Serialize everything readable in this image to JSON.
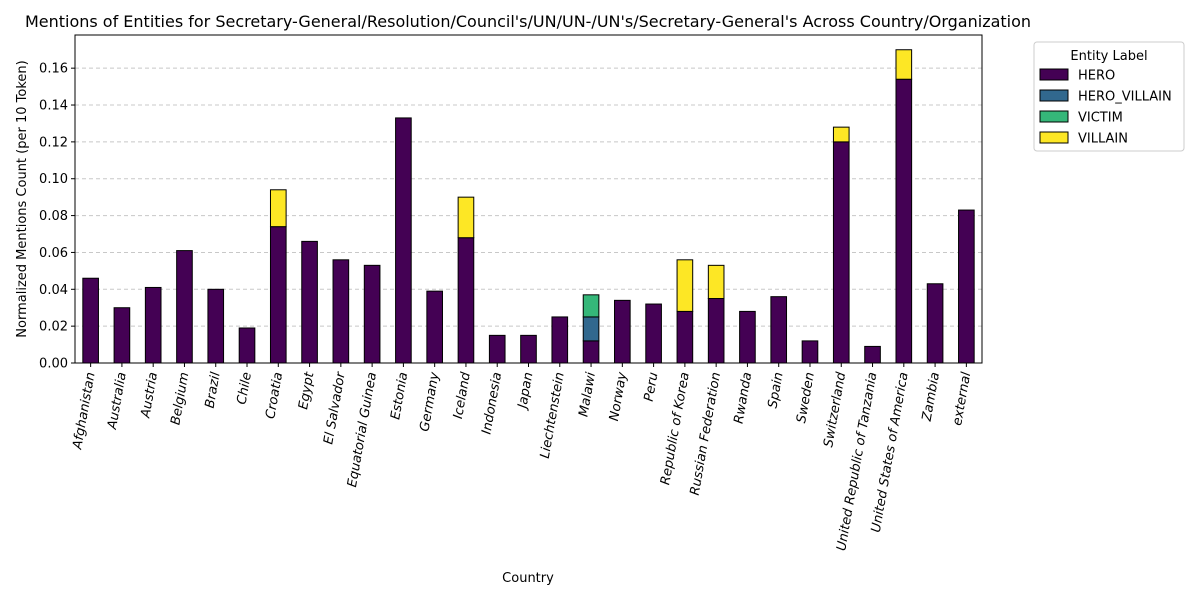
{
  "chart_data": {
    "type": "bar",
    "stacked": true,
    "title": "Mentions of Entities for Secretary-General/Resolution/Council's/UN/UN-/UN's/Secretary-General's Across Country/Organization",
    "xlabel": "Country",
    "ylabel": "Normalized Mentions Count (per 10 Token)",
    "ylim": [
      0,
      0.178
    ],
    "yticks": [
      "0.00",
      "0.02",
      "0.04",
      "0.06",
      "0.08",
      "0.10",
      "0.12",
      "0.14",
      "0.16"
    ],
    "grid": "y-dashed",
    "legend": {
      "title": "Entity Label",
      "placement": "outside-top-right"
    },
    "categories": [
      "Afghanistan",
      "Australia",
      "Austria",
      "Belgium",
      "Brazil",
      "Chile",
      "Croatia",
      "Egypt",
      "El Salvador",
      "Equatorial Guinea",
      "Estonia",
      "Germany",
      "Iceland",
      "Indonesia",
      "Japan",
      "Liechtenstein",
      "Malawi",
      "Norway",
      "Peru",
      "Republic of Korea",
      "Russian Federation",
      "Rwanda",
      "Spain",
      "Sweden",
      "Switzerland",
      "United Republic of Tanzania",
      "United States of America",
      "Zambia",
      "external"
    ],
    "series": [
      {
        "name": "HERO",
        "color": "#440154",
        "values": [
          0.046,
          0.03,
          0.041,
          0.061,
          0.04,
          0.019,
          0.074,
          0.066,
          0.056,
          0.053,
          0.133,
          0.039,
          0.068,
          0.015,
          0.015,
          0.025,
          0.012,
          0.034,
          0.032,
          0.028,
          0.035,
          0.028,
          0.036,
          0.012,
          0.12,
          0.009,
          0.154,
          0.043,
          0.083
        ]
      },
      {
        "name": "HERO_VILLAIN",
        "color": "#31688e",
        "values": [
          0,
          0,
          0,
          0,
          0,
          0,
          0,
          0,
          0,
          0,
          0,
          0,
          0,
          0,
          0,
          0,
          0.013,
          0,
          0,
          0,
          0,
          0,
          0,
          0,
          0,
          0,
          0,
          0,
          0
        ]
      },
      {
        "name": "VICTIM",
        "color": "#35b779",
        "values": [
          0,
          0,
          0,
          0,
          0,
          0,
          0,
          0,
          0,
          0,
          0,
          0,
          0,
          0,
          0,
          0,
          0.012,
          0,
          0,
          0,
          0,
          0,
          0,
          0,
          0,
          0,
          0,
          0,
          0
        ]
      },
      {
        "name": "VILLAIN",
        "color": "#fde725",
        "values": [
          0,
          0,
          0,
          0,
          0,
          0,
          0.02,
          0,
          0,
          0,
          0,
          0,
          0.022,
          0,
          0,
          0,
          0,
          0,
          0,
          0.028,
          0.018,
          0,
          0,
          0,
          0.008,
          0,
          0.016,
          0,
          0
        ]
      }
    ]
  }
}
